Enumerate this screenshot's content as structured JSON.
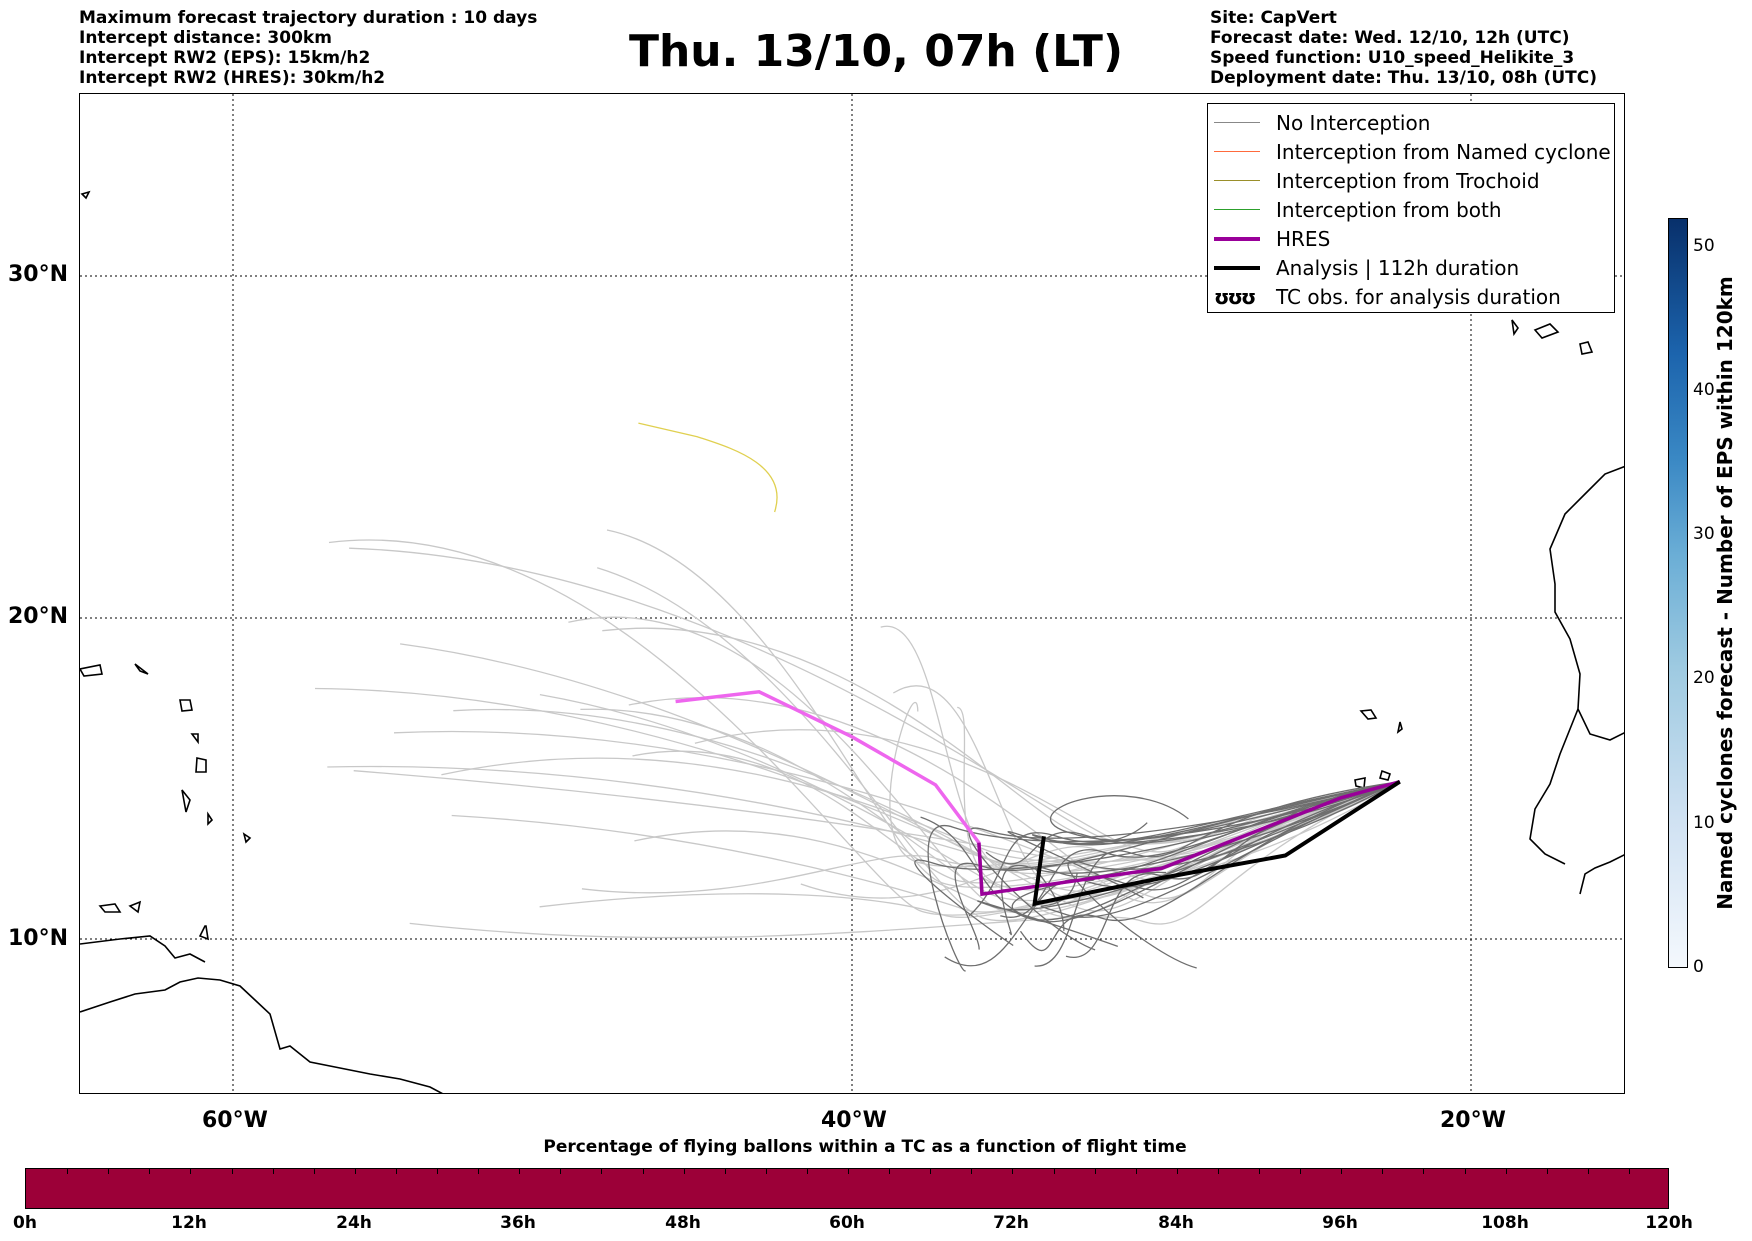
{
  "header_left": [
    "Maximum forecast trajectory duration : 10 days",
    "Intercept distance: 300km",
    "Intercept RW2 (EPS):  15km/h2",
    "Intercept RW2 (HRES): 30km/h2"
  ],
  "title": "Thu. 13/10, 07h (LT)",
  "header_right": [
    "Site: CapVert",
    "Forecast date: Wed. 12/10, 12h (UTC)",
    "Speed function: U10_speed_Helikite_3",
    "Deployment date: Thu. 13/10, 08h (UTC)"
  ],
  "map": {
    "lat_labels": [
      "30°N",
      "20°N",
      "10°N"
    ],
    "lon_labels": [
      "60°W",
      "40°W",
      "20°W"
    ],
    "grid": "dotted",
    "hres_track": [
      [
        -45.7,
        17.4
      ],
      [
        -43.0,
        17.7
      ],
      [
        -40.0,
        16.3
      ],
      [
        -37.3,
        14.8
      ],
      [
        -35.9,
        13.0
      ],
      [
        -35.8,
        11.4
      ],
      [
        -30.0,
        12.2
      ],
      [
        -24.2,
        14.4
      ],
      [
        -22.3,
        14.9
      ]
    ],
    "analysis_track": [
      [
        -33.8,
        13.2
      ],
      [
        -34.1,
        11.1
      ],
      [
        -30.0,
        11.9
      ],
      [
        -26.0,
        12.6
      ],
      [
        -22.3,
        14.9
      ]
    ]
  },
  "legend": [
    {
      "label": "No Interception",
      "color": "#888888",
      "width": 1.5
    },
    {
      "label": "Interception from Named cyclone",
      "color": "#ff6a3c",
      "width": 1.5
    },
    {
      "label": "Interception from Trochoid",
      "color": "#9a8f2a",
      "width": 1.5
    },
    {
      "label": "Interception from both",
      "color": "#2ca02c",
      "width": 1.5
    },
    {
      "label": "HRES",
      "color": "#990099",
      "width": 4
    },
    {
      "label": "Analysis | 112h duration",
      "color": "#000000",
      "width": 4
    },
    {
      "label": "TC obs. for analysis duration",
      "symbol": "ʊʊʊ"
    }
  ],
  "colorbar": {
    "label": "Named cyclones forecast - Number of EPS within 120km",
    "ticks": [
      "0",
      "10",
      "20",
      "30",
      "40",
      "50"
    ],
    "range": [
      0,
      52
    ]
  },
  "flight_time": {
    "title": "Percentage of flying ballons within a TC as a function of flight time",
    "labels": [
      "0h",
      "12h",
      "24h",
      "36h",
      "48h",
      "60h",
      "72h",
      "84h",
      "96h",
      "108h",
      "120h"
    ],
    "bar_color": "#9c0038"
  }
}
